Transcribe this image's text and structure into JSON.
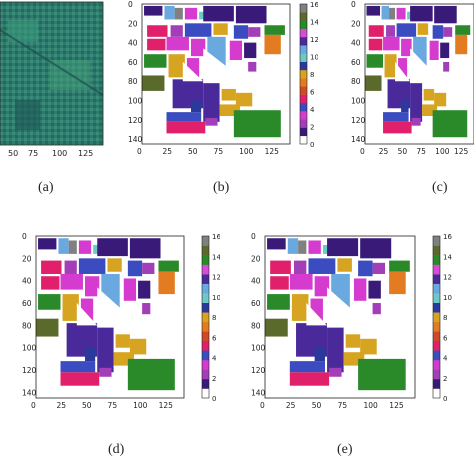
{
  "figure": {
    "captions": [
      "(a)",
      "(b)",
      "(c)",
      "(d)",
      "(e)"
    ]
  },
  "panels": {
    "a": {
      "x_ticks": [
        "50",
        "75",
        "100",
        "125"
      ]
    },
    "map_x_ticks": [
      "0",
      "25",
      "50",
      "75",
      "100",
      "125"
    ],
    "map_y_ticks": [
      "0",
      "20",
      "40",
      "60",
      "80",
      "100",
      "120",
      "140"
    ],
    "colorbar_ticks": [
      "16",
      "14",
      "12",
      "10",
      "8",
      "6",
      "4",
      "2",
      "0"
    ]
  },
  "colors": {
    "background": "#ffffff",
    "satellite_base": "#2f7a6e",
    "classes": [
      "#ffffff",
      "#3a1a78",
      "#a23fb8",
      "#d63bd0",
      "#3b4cc0",
      "#e0206a",
      "#d04a2a",
      "#e37b20",
      "#d6a420",
      "#2a3a9c",
      "#6dc8c8",
      "#6aa8e0",
      "#4a2a9a",
      "#d84ad8",
      "#2a8a2a",
      "#5a6a2a",
      "#808080"
    ]
  }
}
